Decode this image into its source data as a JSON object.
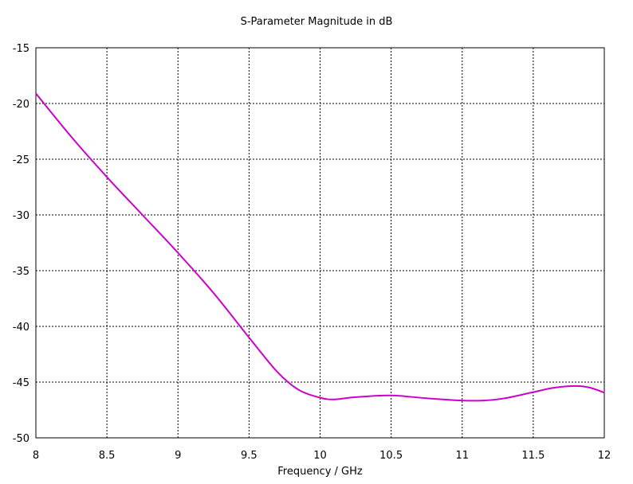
{
  "chart_data": {
    "type": "line",
    "title": "S-Parameter Magnitude in dB",
    "xlabel": "Frequency / GHz",
    "ylabel": "",
    "xlim": [
      8,
      12
    ],
    "ylim": [
      -50,
      -15
    ],
    "x_ticks": [
      "8",
      "8.5",
      "9",
      "9.5",
      "10",
      "10.5",
      "11",
      "11.5",
      "12"
    ],
    "y_ticks": [
      "-15",
      "-20",
      "-25",
      "-30",
      "-35",
      "-40",
      "-45",
      "-50"
    ],
    "grid": true,
    "legend": "none",
    "series": [
      {
        "color": "#cc00cc",
        "x": [
          8.0,
          8.25,
          8.5,
          8.75,
          9.0,
          9.25,
          9.5,
          9.7,
          9.85,
          10.0,
          10.1,
          10.25,
          10.5,
          10.75,
          11.0,
          11.15,
          11.3,
          11.5,
          11.65,
          11.8,
          11.9,
          12.0
        ],
        "y": [
          -19.1,
          -23.0,
          -26.6,
          -30.0,
          -33.4,
          -37.0,
          -41.0,
          -44.1,
          -45.7,
          -46.4,
          -46.55,
          -46.35,
          -46.2,
          -46.45,
          -46.65,
          -46.65,
          -46.45,
          -45.9,
          -45.5,
          -45.35,
          -45.5,
          -45.95
        ]
      }
    ]
  }
}
